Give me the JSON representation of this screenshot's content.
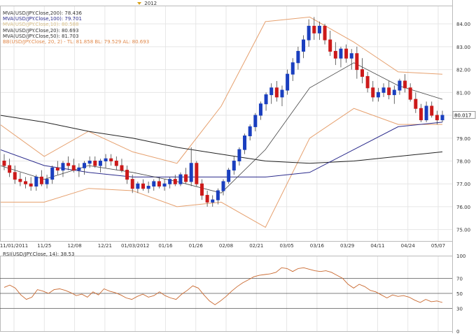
{
  "header": {
    "year_label": "2012"
  },
  "legend": [
    {
      "text": "MVA(USD/JPY.Close,200): 78.436",
      "color": "#333333"
    },
    {
      "text": "MVA(USD/JPY.Close,100): 79.701",
      "color": "#2b2b8c"
    },
    {
      "text": "MVA(USD/JPY.Close,10): 80.588",
      "color": "#d9c08a"
    },
    {
      "text": "MVA(USD/JPY.Close,20): 80.693",
      "color": "#333333"
    },
    {
      "text": "MVA(USD/JPY.Close,50): 81.703",
      "color": "#333333"
    },
    {
      "text": "BB(USD/JPY.Close, 20, 2) -  TL: 81.858  BL: 79.529  AL: 80.693",
      "color": "#e0884a"
    }
  ],
  "rsi_legend": "RSI(USD/JPY.Close, 14): 38.53",
  "price_label": "80.017",
  "colors": {
    "up": "#1a3fbf",
    "down": "#cc1a1a",
    "ma200": "#222222",
    "ma100": "#2b2b8c",
    "ma20": "#444444",
    "bb": "#e6a06e",
    "rsi": "#c9682e",
    "grid": "#e6e6e6"
  },
  "chart_data": [
    {
      "type": "candlestick",
      "title": "USD/JPY",
      "x_tick_labels": [
        "11/01/2011",
        "11/25",
        "12/08",
        "12/21",
        "01/03/2012",
        "01/16",
        "01/26",
        "02/08",
        "02/21",
        "03/05",
        "03/16",
        "03/29",
        "04/11",
        "04/24",
        "05/07"
      ],
      "y_ticks": [
        75.0,
        76.0,
        77.0,
        78.0,
        79.0,
        80.0,
        81.0,
        82.0,
        83.0,
        84.0
      ],
      "ylim": [
        74.5,
        84.8
      ],
      "last_price": 80.017,
      "ohlc": [
        [
          78.0,
          78.3,
          77.6,
          77.8
        ],
        [
          77.8,
          78.1,
          77.3,
          77.5
        ],
        [
          77.5,
          77.8,
          77.0,
          77.2
        ],
        [
          77.2,
          77.5,
          76.9,
          77.1
        ],
        [
          77.1,
          77.3,
          76.8,
          77.0
        ],
        [
          77.0,
          77.3,
          76.7,
          76.9
        ],
        [
          76.9,
          77.4,
          76.7,
          77.3
        ],
        [
          77.3,
          77.6,
          76.9,
          77.0
        ],
        [
          77.0,
          77.4,
          76.8,
          77.2
        ],
        [
          77.2,
          77.8,
          77.0,
          77.7
        ],
        [
          77.7,
          78.0,
          77.4,
          77.6
        ],
        [
          77.6,
          78.0,
          77.3,
          77.9
        ],
        [
          77.9,
          78.2,
          77.6,
          77.8
        ],
        [
          77.8,
          78.1,
          77.5,
          77.6
        ],
        [
          77.6,
          77.9,
          77.3,
          77.7
        ],
        [
          77.7,
          78.0,
          77.4,
          77.9
        ],
        [
          77.9,
          78.2,
          77.7,
          78.0
        ],
        [
          78.0,
          78.2,
          77.7,
          77.8
        ],
        [
          77.8,
          78.1,
          77.5,
          78.0
        ],
        [
          78.0,
          78.3,
          77.7,
          78.1
        ],
        [
          78.1,
          78.3,
          77.8,
          78.0
        ],
        [
          78.0,
          78.2,
          77.6,
          77.8
        ],
        [
          77.8,
          78.1,
          77.5,
          77.6
        ],
        [
          77.6,
          77.8,
          77.0,
          77.2
        ],
        [
          77.2,
          77.4,
          76.6,
          76.8
        ],
        [
          76.8,
          77.1,
          76.6,
          77.0
        ],
        [
          77.0,
          77.2,
          76.7,
          76.8
        ],
        [
          76.8,
          77.1,
          76.6,
          76.9
        ],
        [
          76.9,
          77.2,
          76.7,
          77.1
        ],
        [
          77.1,
          77.3,
          76.8,
          76.9
        ],
        [
          76.9,
          77.2,
          76.7,
          77.0
        ],
        [
          77.0,
          77.3,
          76.8,
          77.2
        ],
        [
          77.2,
          77.4,
          76.9,
          77.0
        ],
        [
          77.0,
          77.5,
          76.9,
          77.4
        ],
        [
          77.4,
          77.7,
          77.0,
          77.1
        ],
        [
          77.1,
          78.6,
          76.9,
          77.9
        ],
        [
          77.9,
          78.0,
          76.9,
          77.0
        ],
        [
          77.0,
          77.2,
          76.3,
          76.5
        ],
        [
          76.5,
          76.7,
          76.0,
          76.2
        ],
        [
          76.2,
          76.5,
          76.0,
          76.3
        ],
        [
          76.3,
          76.8,
          76.1,
          76.7
        ],
        [
          76.7,
          77.2,
          76.5,
          77.1
        ],
        [
          77.1,
          77.7,
          77.0,
          77.6
        ],
        [
          77.6,
          78.2,
          77.4,
          78.0
        ],
        [
          78.0,
          78.6,
          77.8,
          78.5
        ],
        [
          78.5,
          79.2,
          78.3,
          79.1
        ],
        [
          79.1,
          79.6,
          78.9,
          79.5
        ],
        [
          79.5,
          80.1,
          79.3,
          80.0
        ],
        [
          80.0,
          80.6,
          79.8,
          80.5
        ],
        [
          80.5,
          81.0,
          80.2,
          80.9
        ],
        [
          80.9,
          81.4,
          80.5,
          81.2
        ],
        [
          81.2,
          81.5,
          80.6,
          80.8
        ],
        [
          80.8,
          81.3,
          80.4,
          81.1
        ],
        [
          81.1,
          82.0,
          80.9,
          81.8
        ],
        [
          81.8,
          82.5,
          81.5,
          82.3
        ],
        [
          82.3,
          83.0,
          82.0,
          82.8
        ],
        [
          82.8,
          83.5,
          82.5,
          83.3
        ],
        [
          83.3,
          84.2,
          83.0,
          83.9
        ],
        [
          83.9,
          84.3,
          83.3,
          83.6
        ],
        [
          83.6,
          84.1,
          83.3,
          83.9
        ],
        [
          83.9,
          84.0,
          83.1,
          83.3
        ],
        [
          83.3,
          83.7,
          82.6,
          82.8
        ],
        [
          82.8,
          83.2,
          82.2,
          82.5
        ],
        [
          82.5,
          83.0,
          82.1,
          82.9
        ],
        [
          82.9,
          83.1,
          82.3,
          82.5
        ],
        [
          82.5,
          82.9,
          82.0,
          82.7
        ],
        [
          82.7,
          83.0,
          81.6,
          82.0
        ],
        [
          82.0,
          82.5,
          81.4,
          81.7
        ],
        [
          81.7,
          81.9,
          81.0,
          81.2
        ],
        [
          81.2,
          81.5,
          80.6,
          80.8
        ],
        [
          80.8,
          81.2,
          80.6,
          81.0
        ],
        [
          81.0,
          81.4,
          80.8,
          81.2
        ],
        [
          81.2,
          81.5,
          80.7,
          80.9
        ],
        [
          80.9,
          81.3,
          80.5,
          81.1
        ],
        [
          81.1,
          81.6,
          80.9,
          81.5
        ],
        [
          81.5,
          81.8,
          81.0,
          81.2
        ],
        [
          81.2,
          81.4,
          80.6,
          80.7
        ],
        [
          80.7,
          81.0,
          80.1,
          80.3
        ],
        [
          80.3,
          80.5,
          79.7,
          79.8
        ],
        [
          79.8,
          80.6,
          79.7,
          80.4
        ],
        [
          80.4,
          80.6,
          79.9,
          80.0
        ],
        [
          80.0,
          80.2,
          79.6,
          79.8
        ],
        [
          79.8,
          80.2,
          79.7,
          80.0
        ]
      ],
      "ma200": [
        80.0,
        79.7,
        79.3,
        79.0,
        78.6,
        78.3,
        78.0,
        77.9,
        78.0,
        78.2,
        78.4
      ],
      "ma100": [
        78.5,
        77.8,
        77.5,
        77.3,
        77.3,
        77.3,
        77.3,
        77.5,
        78.5,
        79.5,
        79.7
      ],
      "ma20": [
        77.8,
        77.2,
        77.8,
        77.5,
        77.1,
        76.6,
        78.5,
        81.2,
        82.3,
        81.3,
        80.7
      ],
      "bb_upper": [
        79.6,
        78.2,
        79.3,
        78.4,
        77.9,
        80.4,
        84.1,
        84.3,
        83.2,
        81.9,
        81.8
      ],
      "bb_lower": [
        76.2,
        76.2,
        76.8,
        76.7,
        76.0,
        76.2,
        75.1,
        79.0,
        80.3,
        79.6,
        79.6
      ]
    },
    {
      "type": "line",
      "title": "RSI(14)",
      "y_ticks": [
        0,
        30,
        50,
        70,
        100
      ],
      "ylim": [
        0,
        100
      ],
      "rsi_ticks_labels": [
        "100",
        "70",
        "50",
        "30",
        "0"
      ],
      "values": [
        58,
        61,
        57,
        48,
        42,
        45,
        55,
        53,
        50,
        55,
        56,
        54,
        51,
        47,
        49,
        45,
        52,
        48,
        56,
        53,
        51,
        48,
        44,
        42,
        46,
        49,
        45,
        47,
        52,
        47,
        44,
        42,
        49,
        54,
        60,
        57,
        48,
        40,
        35,
        40,
        46,
        53,
        59,
        64,
        68,
        72,
        74,
        75,
        76,
        78,
        84,
        83,
        79,
        83,
        84,
        82,
        80,
        79,
        80,
        78,
        74,
        70,
        62,
        57,
        62,
        59,
        54,
        52,
        48,
        44,
        48,
        46,
        47,
        45,
        41,
        38,
        42,
        39,
        40,
        38
      ]
    }
  ]
}
